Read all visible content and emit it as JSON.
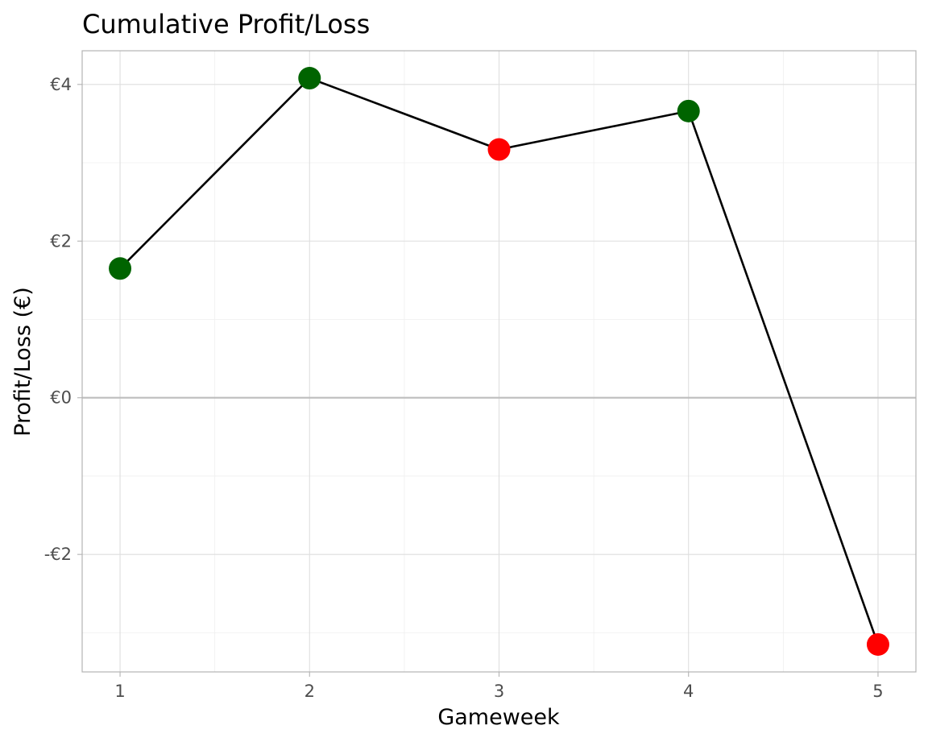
{
  "chart_data": {
    "type": "line",
    "title": "Cumulative Profit/Loss",
    "xlabel": "Gameweek",
    "ylabel": "Profit/Loss (€)",
    "x": [
      1,
      2,
      3,
      4,
      5
    ],
    "y": [
      1.65,
      4.08,
      3.17,
      3.66,
      -3.15
    ],
    "point_colors": [
      "#006400",
      "#006400",
      "#FF0000",
      "#006400",
      "#FF0000"
    ],
    "line_color": "#000000",
    "xlim": [
      0.8,
      5.2
    ],
    "ylim": [
      -3.5,
      4.43
    ],
    "x_ticks": [
      1,
      2,
      3,
      4,
      5
    ],
    "x_tick_labels": [
      "1",
      "2",
      "3",
      "4",
      "5"
    ],
    "y_ticks": [
      -2,
      0,
      2,
      4
    ],
    "y_tick_labels": [
      "-€2",
      "€0",
      "€2",
      "€4"
    ],
    "x_minor_ticks": [
      1.5,
      2.5,
      3.5,
      4.5
    ],
    "y_minor_ticks": [
      -3,
      -1,
      1,
      3
    ],
    "reference_line_y": 0,
    "grid": true,
    "legend": "none"
  }
}
